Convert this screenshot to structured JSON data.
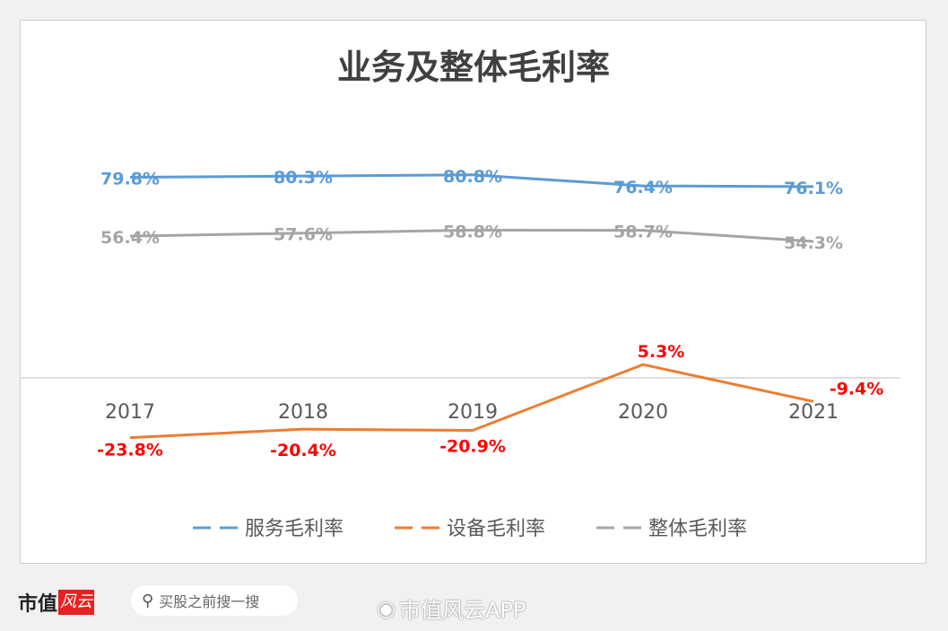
{
  "chart_data": {
    "type": "line",
    "title": "业务及整体毛利率",
    "categories": [
      "2017",
      "2018",
      "2019",
      "2020",
      "2021"
    ],
    "series": [
      {
        "name": "服务毛利率",
        "color": "#5b9bd5",
        "label_color": "#5b9bd5",
        "values": [
          79.8,
          80.3,
          80.8,
          76.4,
          76.1
        ],
        "labels": [
          "79.8%",
          "80.3%",
          "80.8%",
          "76.4%",
          "76.1%"
        ]
      },
      {
        "name": "设备毛利率",
        "color": "#ed7d31",
        "label_color": "#ff0000",
        "values": [
          -23.8,
          -20.4,
          -20.9,
          5.3,
          -9.4
        ],
        "labels": [
          "-23.8%",
          "-20.4%",
          "-20.9%",
          "5.3%",
          "-9.4%"
        ]
      },
      {
        "name": "整体毛利率",
        "color": "#a5a5a5",
        "label_color": "#a5a5a5",
        "values": [
          56.4,
          57.6,
          58.8,
          58.7,
          54.3
        ],
        "labels": [
          "56.4%",
          "57.6%",
          "58.8%",
          "58.7%",
          "54.3%"
        ]
      }
    ],
    "ylim": [
      -30,
      90
    ],
    "grid": false,
    "legend": "bottom"
  },
  "footer": {
    "logo_text": "市值",
    "logo_badge": "风云",
    "search_placeholder": "买股之前搜一搜",
    "watermark": "市值风云APP"
  },
  "icons": {
    "search": "search-icon",
    "weibo": "weibo-icon"
  }
}
